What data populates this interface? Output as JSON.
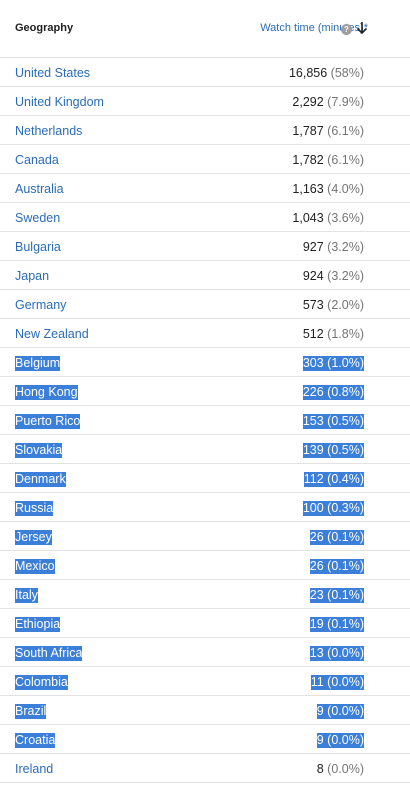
{
  "header": {
    "geography_label": "Geography",
    "metric_label": "Watch time (minutes)*",
    "help_glyph": "?",
    "icons": [
      "help-icon",
      "sort-descending-arrow-icon"
    ]
  },
  "rows": [
    {
      "country": "United States",
      "value": "16,856",
      "percent": "(58%)",
      "selected": false
    },
    {
      "country": "United Kingdom",
      "value": "2,292",
      "percent": "(7.9%)",
      "selected": false
    },
    {
      "country": "Netherlands",
      "value": "1,787",
      "percent": "(6.1%)",
      "selected": false
    },
    {
      "country": "Canada",
      "value": "1,782",
      "percent": "(6.1%)",
      "selected": false
    },
    {
      "country": "Australia",
      "value": "1,163",
      "percent": "(4.0%)",
      "selected": false
    },
    {
      "country": "Sweden",
      "value": "1,043",
      "percent": "(3.6%)",
      "selected": false
    },
    {
      "country": "Bulgaria",
      "value": "927",
      "percent": "(3.2%)",
      "selected": false
    },
    {
      "country": "Japan",
      "value": "924",
      "percent": "(3.2%)",
      "selected": false
    },
    {
      "country": "Germany",
      "value": "573",
      "percent": "(2.0%)",
      "selected": false
    },
    {
      "country": "New Zealand",
      "value": "512",
      "percent": "(1.8%)",
      "selected": false
    },
    {
      "country": "Belgium",
      "value": "303",
      "percent": "(1.0%)",
      "selected": true
    },
    {
      "country": "Hong Kong",
      "value": "226",
      "percent": "(0.8%)",
      "selected": true
    },
    {
      "country": "Puerto Rico",
      "value": "153",
      "percent": "(0.5%)",
      "selected": true
    },
    {
      "country": "Slovakia",
      "value": "139",
      "percent": "(0.5%)",
      "selected": true
    },
    {
      "country": "Denmark",
      "value": "112",
      "percent": "(0.4%)",
      "selected": true
    },
    {
      "country": "Russia",
      "value": "100",
      "percent": "(0.3%)",
      "selected": true
    },
    {
      "country": "Jersey",
      "value": "26",
      "percent": "(0.1%)",
      "selected": true
    },
    {
      "country": "Mexico",
      "value": "26",
      "percent": "(0.1%)",
      "selected": true
    },
    {
      "country": "Italy",
      "value": "23",
      "percent": "(0.1%)",
      "selected": true
    },
    {
      "country": "Ethiopia",
      "value": "19",
      "percent": "(0.1%)",
      "selected": true
    },
    {
      "country": "South Africa",
      "value": "13",
      "percent": "(0.0%)",
      "selected": true
    },
    {
      "country": "Colombia",
      "value": "11",
      "percent": "(0.0%)",
      "selected": true
    },
    {
      "country": "Brazil",
      "value": "9",
      "percent": "(0.0%)",
      "selected": true
    },
    {
      "country": "Croatia",
      "value": "9",
      "percent": "(0.0%)",
      "selected": true
    },
    {
      "country": "Ireland",
      "value": "8",
      "percent": "(0.0%)",
      "selected": false
    }
  ],
  "colors": {
    "link": "#2a6cb8",
    "selection_highlight": "#3b7fd9",
    "row_divider": "#e3e3e3"
  }
}
